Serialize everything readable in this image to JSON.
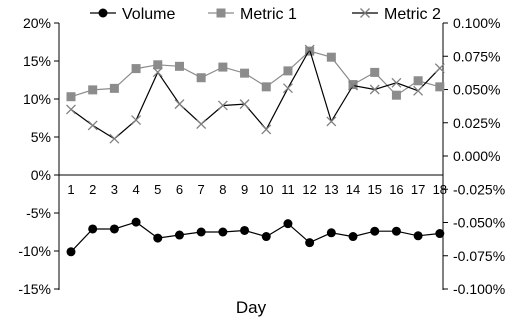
{
  "chart_data": {
    "type": "line",
    "title": "",
    "xlabel": "Day",
    "ylabel_left": "",
    "ylabel_right": "",
    "categories": [
      "1",
      "2",
      "3",
      "4",
      "5",
      "6",
      "7",
      "8",
      "9",
      "10",
      "11",
      "12",
      "13",
      "14",
      "15",
      "16",
      "17",
      "18"
    ],
    "left_axis": {
      "min": -0.15,
      "max": 0.2,
      "ticks": [
        "20%",
        "15%",
        "10%",
        "5%",
        "0%",
        "-5%",
        "-10%",
        "-15%"
      ]
    },
    "right_axis": {
      "min": -0.001,
      "max": 0.001,
      "ticks": [
        "0.100%",
        "0.075%",
        "0.050%",
        "0.025%",
        "0.000%",
        "-0.025%",
        "-0.050%",
        "-0.075%",
        "-0.100%"
      ]
    },
    "grid": false,
    "legend_position": "top",
    "series": [
      {
        "name": "Volume",
        "axis": "left",
        "marker": "circle",
        "color": "#000000",
        "values": [
          -0.101,
          -0.071,
          -0.071,
          -0.062,
          -0.083,
          -0.079,
          -0.075,
          -0.075,
          -0.073,
          -0.081,
          -0.064,
          -0.089,
          -0.076,
          -0.081,
          -0.074,
          -0.074,
          -0.08,
          -0.077
        ]
      },
      {
        "name": "Metric 1",
        "axis": "left",
        "marker": "square",
        "color": "#8c8c8c",
        "values": [
          0.103,
          0.112,
          0.114,
          0.14,
          0.145,
          0.143,
          0.128,
          0.142,
          0.134,
          0.116,
          0.137,
          0.163,
          0.155,
          0.119,
          0.135,
          0.105,
          0.124,
          0.116
        ]
      },
      {
        "name": "Metric 2",
        "axis": "right",
        "marker": "x",
        "color": "#000000",
        "marker_color": "#808080",
        "values": [
          0.00035,
          0.00023,
          0.00013,
          0.00027,
          0.00063,
          0.00039,
          0.00024,
          0.00038,
          0.00039,
          0.0002,
          0.00051,
          0.0008,
          0.00026,
          0.00053,
          0.0005,
          0.00055,
          0.00049,
          0.00066
        ]
      }
    ]
  }
}
